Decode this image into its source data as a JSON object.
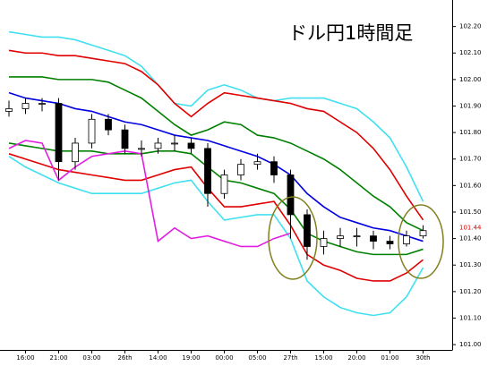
{
  "chart_data": {
    "type": "candlestick",
    "title": "ドル円1時間足",
    "categories": [
      null,
      "16:00",
      null,
      "21:00",
      null,
      "03:00",
      null,
      "26th",
      null,
      "14:00",
      null,
      "19:00",
      null,
      "00:00",
      null,
      "05:00",
      null,
      "27th",
      null,
      "15:00",
      null,
      "20:00",
      null,
      "01:00",
      null,
      "30th"
    ],
    "open": [
      101.88,
      101.89,
      101.91,
      101.91,
      101.69,
      101.76,
      101.85,
      101.81,
      101.74,
      101.74,
      101.76,
      101.76,
      101.74,
      101.57,
      101.64,
      101.68,
      101.69,
      101.64,
      101.49,
      101.37,
      101.4,
      101.41,
      101.41,
      101.39,
      101.38,
      101.41
    ],
    "high": [
      101.92,
      101.93,
      101.93,
      101.93,
      101.78,
      101.87,
      101.87,
      101.83,
      101.77,
      101.78,
      101.79,
      101.78,
      101.76,
      101.66,
      101.7,
      101.72,
      101.71,
      101.66,
      101.51,
      101.43,
      101.44,
      101.44,
      101.43,
      101.41,
      101.43,
      101.45
    ],
    "low": [
      101.86,
      101.87,
      101.88,
      101.62,
      101.66,
      101.74,
      101.79,
      101.72,
      101.71,
      101.72,
      101.73,
      101.72,
      101.52,
      101.55,
      101.62,
      101.66,
      101.61,
      101.4,
      101.32,
      101.34,
      101.37,
      101.37,
      101.36,
      101.36,
      101.37,
      101.4
    ],
    "close": [
      101.89,
      101.91,
      101.91,
      101.69,
      101.76,
      101.85,
      101.81,
      101.74,
      101.74,
      101.76,
      101.76,
      101.74,
      101.57,
      101.64,
      101.68,
      101.69,
      101.64,
      101.49,
      101.37,
      101.4,
      101.41,
      101.41,
      101.39,
      101.38,
      101.41,
      101.43
    ],
    "up_color": "#ffffff",
    "down_color": "#000000",
    "lines": [
      {
        "color": "#40e0f0",
        "values": [
          102.18,
          102.17,
          102.16,
          102.16,
          102.15,
          102.13,
          102.11,
          102.09,
          102.05,
          101.98,
          101.91,
          101.9,
          101.96,
          101.98,
          101.96,
          101.93,
          101.92,
          101.93,
          101.93,
          101.93,
          101.91,
          101.89,
          101.84,
          101.78,
          101.67,
          101.54
        ]
      },
      {
        "color": "#e00000",
        "values": [
          102.11,
          102.1,
          102.1,
          102.09,
          102.09,
          102.08,
          102.07,
          102.06,
          102.03,
          101.98,
          101.91,
          101.86,
          101.91,
          101.95,
          101.94,
          101.93,
          101.92,
          101.91,
          101.89,
          101.88,
          101.84,
          101.8,
          101.74,
          101.66,
          101.56,
          101.47
        ]
      },
      {
        "color": "#008000",
        "values": [
          102.01,
          102.01,
          102.01,
          102.0,
          102.0,
          102.0,
          101.99,
          101.96,
          101.93,
          101.88,
          101.83,
          101.79,
          101.81,
          101.84,
          101.83,
          101.79,
          101.78,
          101.76,
          101.73,
          101.7,
          101.66,
          101.61,
          101.56,
          101.52,
          101.46,
          101.43
        ]
      },
      {
        "color": "#0000e0",
        "values": [
          101.95,
          101.93,
          101.92,
          101.91,
          101.89,
          101.88,
          101.86,
          101.84,
          101.83,
          101.81,
          101.79,
          101.78,
          101.77,
          101.75,
          101.73,
          101.71,
          101.68,
          101.64,
          101.57,
          101.52,
          101.48,
          101.46,
          101.44,
          101.43,
          101.41,
          101.39
        ]
      },
      {
        "color": "#008000",
        "values": [
          101.76,
          101.75,
          101.74,
          101.73,
          101.73,
          101.73,
          101.72,
          101.72,
          101.72,
          101.73,
          101.73,
          101.72,
          101.67,
          101.62,
          101.61,
          101.59,
          101.57,
          101.51,
          101.42,
          101.39,
          101.37,
          101.35,
          101.34,
          101.34,
          101.34,
          101.36
        ]
      },
      {
        "color": "#e00000",
        "values": [
          101.72,
          101.7,
          101.68,
          101.66,
          101.65,
          101.64,
          101.63,
          101.62,
          101.62,
          101.64,
          101.66,
          101.67,
          101.59,
          101.52,
          101.52,
          101.53,
          101.54,
          101.45,
          101.34,
          101.3,
          101.28,
          101.25,
          101.24,
          101.24,
          101.27,
          101.32
        ]
      },
      {
        "color": "#40e0f0",
        "values": [
          101.71,
          101.67,
          101.64,
          101.61,
          101.59,
          101.57,
          101.57,
          101.57,
          101.57,
          101.59,
          101.61,
          101.62,
          101.54,
          101.47,
          101.48,
          101.49,
          101.49,
          101.4,
          101.24,
          101.18,
          101.14,
          101.12,
          101.11,
          101.12,
          101.18,
          101.29
        ]
      },
      {
        "color": "#e020e0",
        "values": [
          101.74,
          101.77,
          101.76,
          101.62,
          101.67,
          101.71,
          101.72,
          101.73,
          101.72,
          101.39,
          101.44,
          101.4,
          101.41,
          101.39,
          101.37,
          101.37,
          101.4,
          101.42,
          null,
          null,
          null,
          null,
          null,
          null,
          null,
          null
        ]
      }
    ],
    "last_price": 101.44,
    "last_price_color": "#e00000",
    "ylim": [
      100.98,
      102.3
    ],
    "yticks": [
      {
        "value": 101.0,
        "label": "101.00"
      },
      {
        "value": 101.1,
        "label": "101.10"
      },
      {
        "value": 101.2,
        "label": "101.20"
      },
      {
        "value": 101.3,
        "label": "101.30"
      },
      {
        "value": 101.4,
        "label": "101.40"
      },
      {
        "value": 101.5,
        "label": "101.50"
      },
      {
        "value": 101.6,
        "label": "101.60"
      },
      {
        "value": 101.7,
        "label": "101.70"
      },
      {
        "value": 101.8,
        "label": "101.80"
      },
      {
        "value": 101.9,
        "label": "101.90"
      },
      {
        "value": 102.0,
        "label": "102.00"
      },
      {
        "value": 102.1,
        "label": "102.10"
      },
      {
        "value": 102.2,
        "label": "102.20"
      }
    ],
    "grid": false
  }
}
